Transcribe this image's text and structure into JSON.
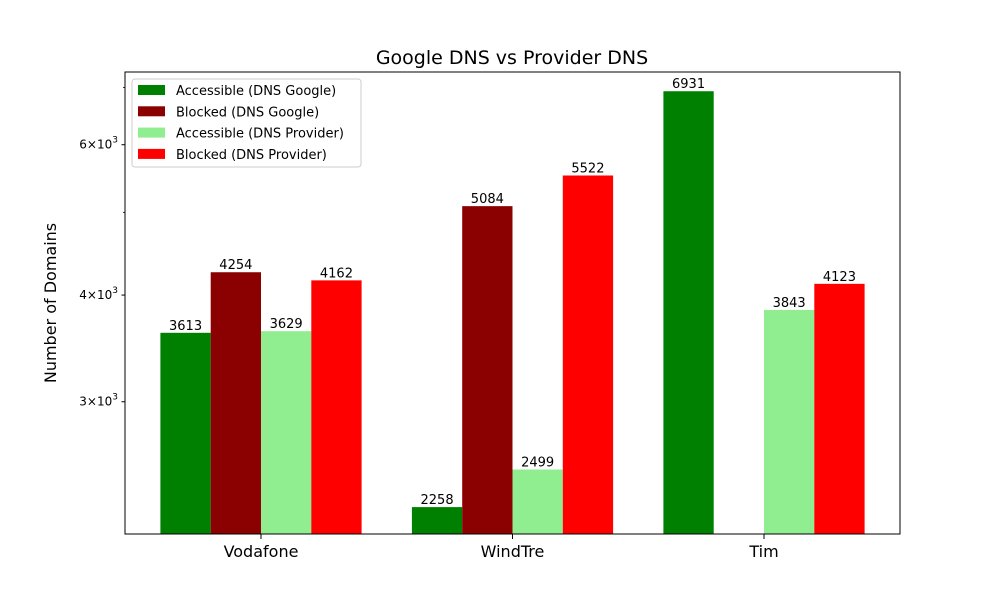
{
  "chart_data": {
    "type": "bar",
    "title": "Google DNS vs Provider DNS",
    "xlabel": "",
    "ylabel": "Number of Domains",
    "yscale": "log",
    "ylim": [
      2100,
      7300
    ],
    "yticks": [
      {
        "value": 3000,
        "base": "3",
        "exp": "3"
      },
      {
        "value": 4000,
        "base": "4",
        "exp": "3"
      },
      {
        "value": 6000,
        "base": "6",
        "exp": "3"
      }
    ],
    "minor_ticks": [
      5000,
      7000
    ],
    "categories": [
      "Vodafone",
      "WindTre",
      "Tim"
    ],
    "series": [
      {
        "name": "Accessible (DNS Google)",
        "color": "#008000",
        "values": [
          3613,
          2258,
          6931
        ]
      },
      {
        "name": "Blocked (DNS Google)",
        "color": "#8b0000",
        "values": [
          4254,
          5084,
          null
        ]
      },
      {
        "name": "Accessible (DNS Provider)",
        "color": "#90ee90",
        "values": [
          3629,
          2499,
          3843
        ]
      },
      {
        "name": "Blocked (DNS Provider)",
        "color": "#ff0000",
        "values": [
          4162,
          5522,
          4123
        ]
      }
    ],
    "legend_position": "top-left",
    "grid": false
  }
}
